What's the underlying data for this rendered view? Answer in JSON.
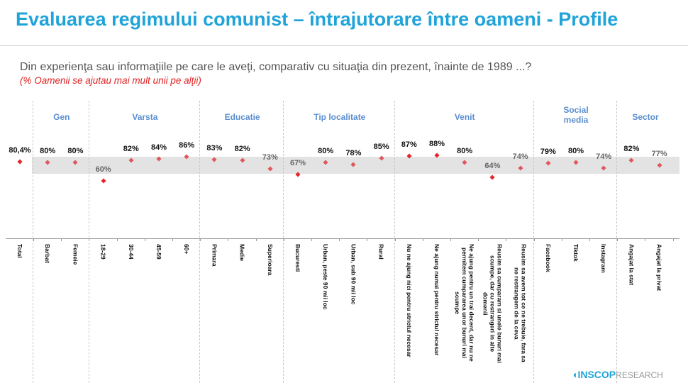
{
  "title": "Evaluarea regimului comunist – întrajutorare între oameni - Profile",
  "question": "Din experienţa sau informaţiile pe care le aveţi, comparativ cu situaţia din prezent, înainte de 1989 ...?",
  "note": "(% Oamenii se ajutau mai mult unii pe alţii)",
  "logo": {
    "brand": "INSCOP",
    "suffix": "RESEARCH"
  },
  "colors": {
    "title": "#1fa3d9",
    "group": "#5b8fd0",
    "marker": "#e8232a",
    "marker_light": "#e0575c",
    "band": "#e3e3e3"
  },
  "chart_data": {
    "type": "scatter",
    "groups": [
      {
        "label": "Gen",
        "from": 1,
        "to": 2
      },
      {
        "label": "Varsta",
        "from": 3,
        "to": 6
      },
      {
        "label": "Educatie",
        "from": 7,
        "to": 9
      },
      {
        "label": "Tip localitate",
        "from": 10,
        "to": 13
      },
      {
        "label": "Venit",
        "from": 14,
        "to": 18
      },
      {
        "label": "Social\nmedia",
        "from": 19,
        "to": 21
      },
      {
        "label": "Sector",
        "from": 22,
        "to": 23
      }
    ],
    "categories": [
      "Total",
      "Barbat",
      "Femeie",
      "18-29",
      "30-44",
      "45-59",
      "60+",
      "Primara",
      "Medie",
      "Superioara",
      "Bucuresti",
      "Urban, peste 90 mii loc",
      "Urban, sub 90 mii loc",
      "Rural",
      "Nu ne ajung nici pentru strictul necesar",
      "Ne ajung numai pentru strictul necesar",
      "Ne ajung pentru un trai decent, dar nu ne\npermitem cumpararea unor bunuri mai\nscumpe",
      "Reusim sa cumparam si unele bunuri mai\nscumpe, dar cu restrangeri in alte\ndomenii",
      "Reusim sa avem tot ce ne trebuie, fara sa\nne restrangem de la ceva",
      "Facebook",
      "Tiktok",
      "Instagram",
      "Angajat la stat",
      "Angajat la privat"
    ],
    "values": [
      80.4,
      80,
      80,
      60,
      82,
      84,
      86,
      83,
      82,
      73,
      67,
      80,
      78,
      85,
      87,
      88,
      80,
      64,
      74,
      79,
      80,
      74,
      82,
      77
    ],
    "labels": [
      "80,4%",
      "80%",
      "80%",
      "60%",
      "82%",
      "84%",
      "86%",
      "83%",
      "82%",
      "73%",
      "67%",
      "80%",
      "78%",
      "85%",
      "87%",
      "88%",
      "80%",
      "64%",
      "74%",
      "79%",
      "80%",
      "74%",
      "82%",
      "77%"
    ],
    "significant": [
      true,
      false,
      false,
      true,
      false,
      false,
      false,
      false,
      false,
      false,
      true,
      false,
      false,
      false,
      true,
      true,
      false,
      true,
      false,
      false,
      false,
      false,
      false,
      false
    ],
    "reference_band": [
      74,
      83
    ]
  }
}
